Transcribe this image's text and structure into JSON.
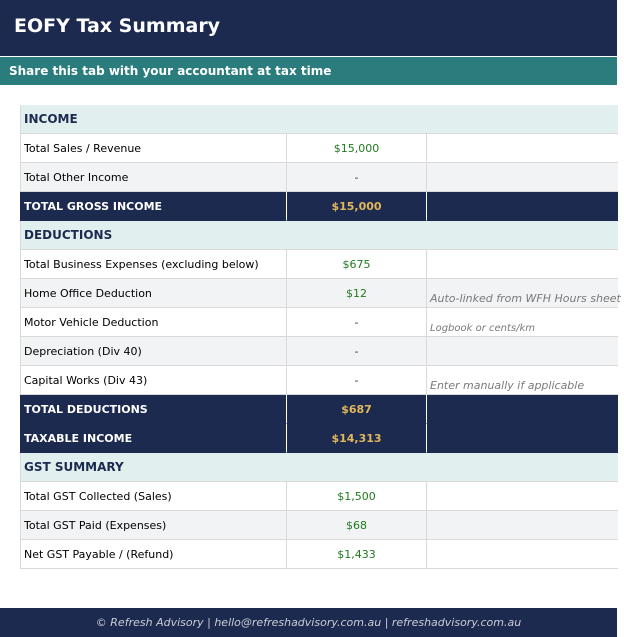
{
  "header": {
    "title": "EOFY Tax Summary"
  },
  "subheader": {
    "text": "Share this tab with your accountant at tax time"
  },
  "sections": {
    "income": "INCOME",
    "deductions": "DEDUCTIONS",
    "gst": "GST SUMMARY"
  },
  "rows": {
    "total_sales": {
      "label": "Total Sales / Revenue",
      "value": "$15,000"
    },
    "total_other_income": {
      "label": "Total Other Income",
      "value": "-"
    },
    "total_gross_income": {
      "label": "TOTAL GROSS INCOME",
      "value": "$15,000"
    },
    "total_business_expenses": {
      "label": "Total Business Expenses (excluding below)",
      "value": "$675"
    },
    "home_office": {
      "label": "Home Office Deduction",
      "value": "$12",
      "note": "Auto-linked from WFH Hours sheet"
    },
    "motor_vehicle": {
      "label": "Motor Vehicle Deduction",
      "value": "-",
      "note": "Logbook or cents/km"
    },
    "depreciation": {
      "label": "Depreciation (Div 40)",
      "value": "-"
    },
    "capital_works": {
      "label": "Capital Works (Div 43)",
      "value": "-",
      "note": "Enter manually if applicable"
    },
    "total_deductions": {
      "label": "TOTAL DEDUCTIONS",
      "value": "$687"
    },
    "taxable_income": {
      "label": "TAXABLE INCOME",
      "value": "$14,313"
    },
    "gst_collected": {
      "label": "Total GST Collected (Sales)",
      "value": "$1,500"
    },
    "gst_paid": {
      "label": "Total GST Paid (Expenses)",
      "value": "$68"
    },
    "net_gst": {
      "label": "Net GST Payable / (Refund)",
      "value": "$1,433"
    }
  },
  "footer": {
    "text": "© Refresh Advisory  |  hello@refreshadvisory.com.au  |  refreshadvisory.com.au"
  },
  "colors": {
    "navy": "#1c2a4f",
    "teal": "#2b7d7d",
    "section_bg": "#e2efef",
    "gold": "#e0b75a",
    "green": "#1e7a1e"
  }
}
